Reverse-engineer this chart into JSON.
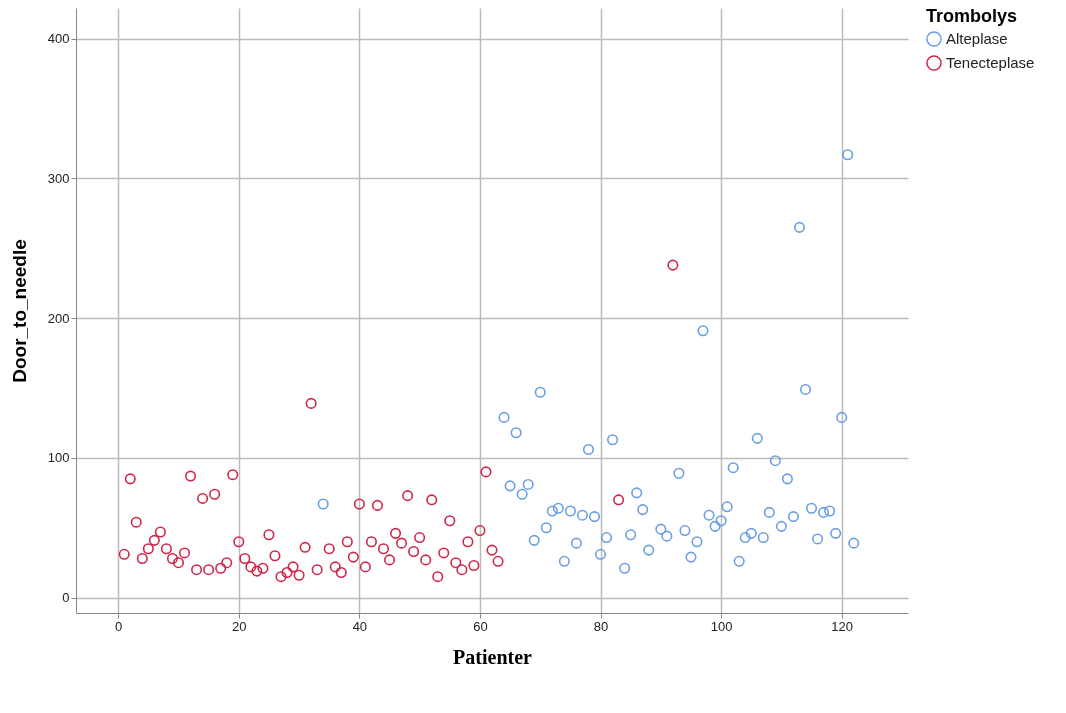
{
  "chart_data": {
    "type": "scatter",
    "xlabel": "Patienter",
    "ylabel": "Door_to_needle",
    "legend_title": "Trombolys",
    "legend": "top right",
    "grid": true,
    "marker": "circle",
    "xlim": [
      -7,
      131
    ],
    "ylim": [
      -11,
      422
    ],
    "xticks": [
      0,
      20,
      40,
      60,
      80,
      100,
      120
    ],
    "yticks": [
      0,
      100,
      200,
      300,
      400
    ],
    "series": [
      {
        "name": "Alteplase",
        "color": "#6a9fe0",
        "x": [
          34,
          64,
          65,
          66,
          67,
          68,
          69,
          70,
          71,
          72,
          73,
          74,
          75,
          76,
          77,
          78,
          79,
          80,
          81,
          82,
          84,
          85,
          86,
          87,
          88,
          90,
          91,
          93,
          94,
          95,
          96,
          97,
          98,
          99,
          100,
          101,
          102,
          103,
          104,
          105,
          106,
          107,
          108,
          109,
          110,
          111,
          112,
          113,
          114,
          115,
          116,
          117,
          118,
          119,
          120,
          121,
          122
        ],
        "values": [
          67,
          129,
          80,
          118,
          74,
          81,
          41,
          147,
          50,
          62,
          64,
          26,
          62,
          39,
          59,
          106,
          58,
          31,
          43,
          113,
          21,
          45,
          75,
          63,
          34,
          49,
          44,
          89,
          48,
          29,
          40,
          191,
          59,
          51,
          55,
          65,
          93,
          26,
          43,
          46,
          114,
          43,
          61,
          98,
          51,
          85,
          58,
          265,
          149,
          64,
          42,
          61,
          62,
          46,
          129,
          317,
          39
        ]
      },
      {
        "name": "Tenecteplase",
        "color": "#d0264a",
        "x": [
          1,
          2,
          3,
          4,
          5,
          6,
          7,
          8,
          9,
          10,
          11,
          12,
          13,
          14,
          15,
          16,
          17,
          18,
          19,
          20,
          21,
          22,
          23,
          24,
          25,
          26,
          27,
          28,
          29,
          30,
          31,
          32,
          33,
          35,
          36,
          37,
          38,
          39,
          40,
          41,
          42,
          43,
          44,
          45,
          46,
          47,
          48,
          49,
          50,
          51,
          52,
          53,
          54,
          55,
          56,
          57,
          58,
          59,
          60,
          61,
          62,
          63,
          83,
          92
        ],
        "values": [
          31,
          85,
          54,
          28,
          35,
          41,
          47,
          35,
          28,
          25,
          32,
          87,
          20,
          71,
          20,
          74,
          21,
          25,
          88,
          40,
          28,
          22,
          19,
          21,
          45,
          30,
          15,
          18,
          22,
          16,
          36,
          139,
          20,
          35,
          22,
          18,
          40,
          29,
          67,
          22,
          40,
          66,
          35,
          27,
          46,
          39,
          73,
          33,
          43,
          27,
          70,
          15,
          32,
          55,
          25,
          20,
          40,
          23,
          48,
          90,
          34,
          26,
          70,
          238
        ]
      }
    ]
  }
}
